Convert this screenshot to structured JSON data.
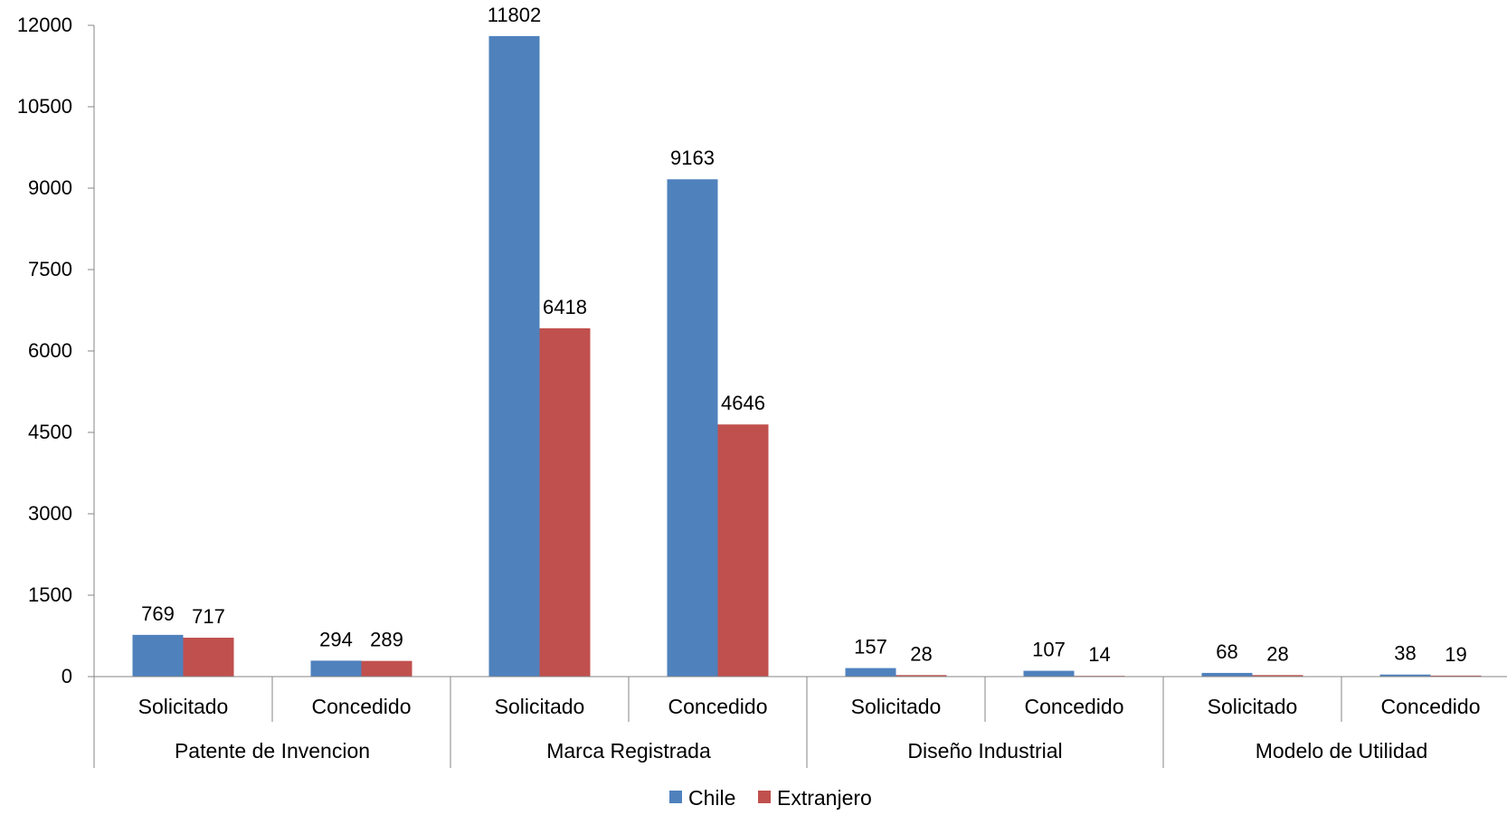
{
  "chart_data": {
    "type": "bar",
    "title": "",
    "xlabel": "",
    "ylabel": "",
    "ylim": [
      0,
      12000
    ],
    "yticks": [
      0,
      1500,
      3000,
      4500,
      6000,
      7500,
      9000,
      10500,
      12000
    ],
    "groups": [
      {
        "label": "Patente de Invencion",
        "subcategories": [
          "Solicitado",
          "Concedido"
        ]
      },
      {
        "label": "Marca Registrada",
        "subcategories": [
          "Solicitado",
          "Concedido"
        ]
      },
      {
        "label": "Diseño Industrial",
        "subcategories": [
          "Solicitado",
          "Concedido"
        ]
      },
      {
        "label": "Modelo de Utilidad",
        "subcategories": [
          "Solicitado",
          "Concedido"
        ]
      }
    ],
    "series": [
      {
        "name": "Chile",
        "color": "#4F81BD",
        "values": [
          769,
          294,
          11802,
          9163,
          157,
          107,
          68,
          38
        ]
      },
      {
        "name": "Extranjero",
        "color": "#C0504D",
        "values": [
          717,
          289,
          6418,
          4646,
          28,
          14,
          28,
          19
        ]
      }
    ],
    "data_labels": true,
    "grid": false,
    "legend": "bottom-center"
  }
}
